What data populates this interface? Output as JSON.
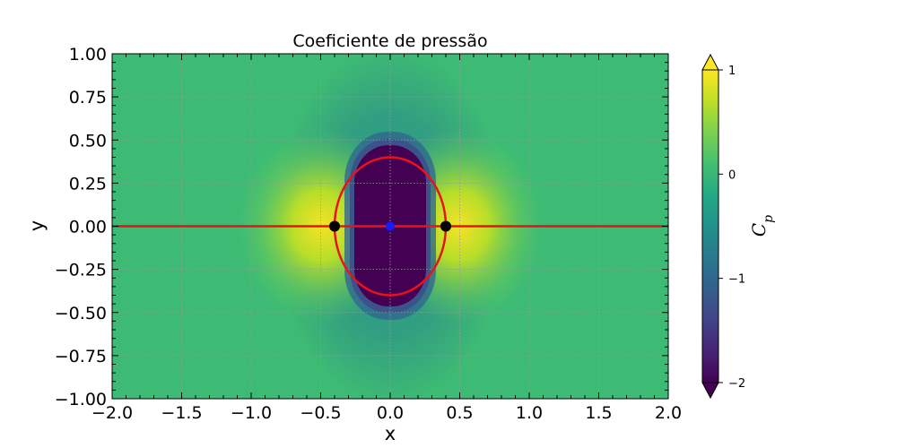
{
  "chart_data": {
    "type": "heatmap",
    "title": "Coeficiente de pressão",
    "xlabel": "x",
    "ylabel": "y",
    "xlim": [
      -2.0,
      2.0
    ],
    "ylim": [
      -1.0,
      1.0
    ],
    "x_ticks": [
      "−2.0",
      "−1.5",
      "−1.0",
      "−0.5",
      "0.0",
      "0.5",
      "1.0",
      "1.5",
      "2.0"
    ],
    "y_ticks": [
      "1.00",
      "0.75",
      "0.50",
      "0.25",
      "0.00",
      "−0.25",
      "−0.50",
      "−0.75",
      "−1.00"
    ],
    "grid": true,
    "colorbar": {
      "label_main": "C",
      "label_sub": "p",
      "range": [
        -2,
        1
      ],
      "ticks": [
        "1",
        "0",
        "−1",
        "−2"
      ],
      "colormap": "viridis",
      "extend": "both"
    },
    "field": "pressure coefficient",
    "stagnation_points": [
      [
        -0.4,
        0.0
      ],
      [
        0.4,
        0.0
      ]
    ],
    "source_point": [
      0.0,
      0.0
    ],
    "body_outline": {
      "semi_axis_x": 0.4,
      "semi_axis_y": 0.4
    },
    "dividing_streamline_y": 0.0,
    "colors": {
      "outline": "#e8131a",
      "stagnation": "#000000",
      "source": "#1a1aff",
      "grid": "#9a9a9a"
    }
  }
}
